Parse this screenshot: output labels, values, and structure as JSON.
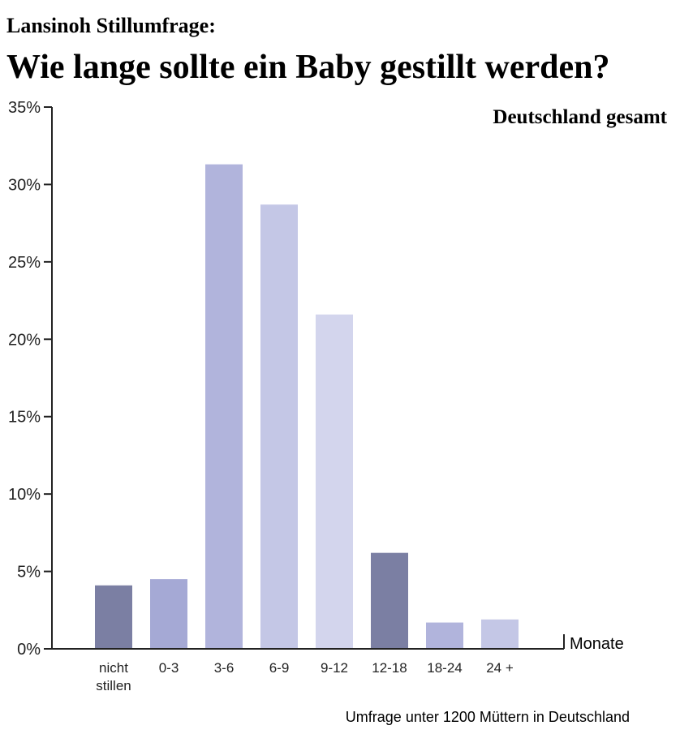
{
  "chart_data": {
    "type": "bar",
    "supertitle": "Lansinoh Stillumfrage:",
    "title": "Wie lange sollte ein Baby gestillt werden?",
    "subtitle": "Deutschland gesamt",
    "xlabel": "Monate",
    "ylabel": "",
    "footnote": "Umfrage unter 1200 Müttern in Deutschland",
    "categories": [
      [
        "nicht",
        "stillen"
      ],
      [
        "0-3"
      ],
      [
        "3-6"
      ],
      [
        "6-9"
      ],
      [
        "9-12"
      ],
      [
        "12-18"
      ],
      [
        "18-24"
      ],
      [
        "24 +"
      ]
    ],
    "values": [
      4.1,
      4.5,
      31.3,
      28.7,
      21.6,
      6.2,
      1.7,
      1.9
    ],
    "bar_colors": [
      "#7b7fa3",
      "#a5a9d5",
      "#b1b4dc",
      "#c4c7e6",
      "#d3d5ed",
      "#7b7fa3",
      "#b1b4dc",
      "#c4c7e6"
    ],
    "ylim": [
      0,
      35
    ],
    "yticks": [
      0,
      5,
      10,
      15,
      20,
      25,
      30,
      35
    ],
    "ytick_suffix": "%",
    "grid": false,
    "legend": "none",
    "colors": {
      "title": "#a3a6cf",
      "subtitle": "#2ab3b3",
      "axis": "#222222",
      "text": "#222222"
    }
  }
}
